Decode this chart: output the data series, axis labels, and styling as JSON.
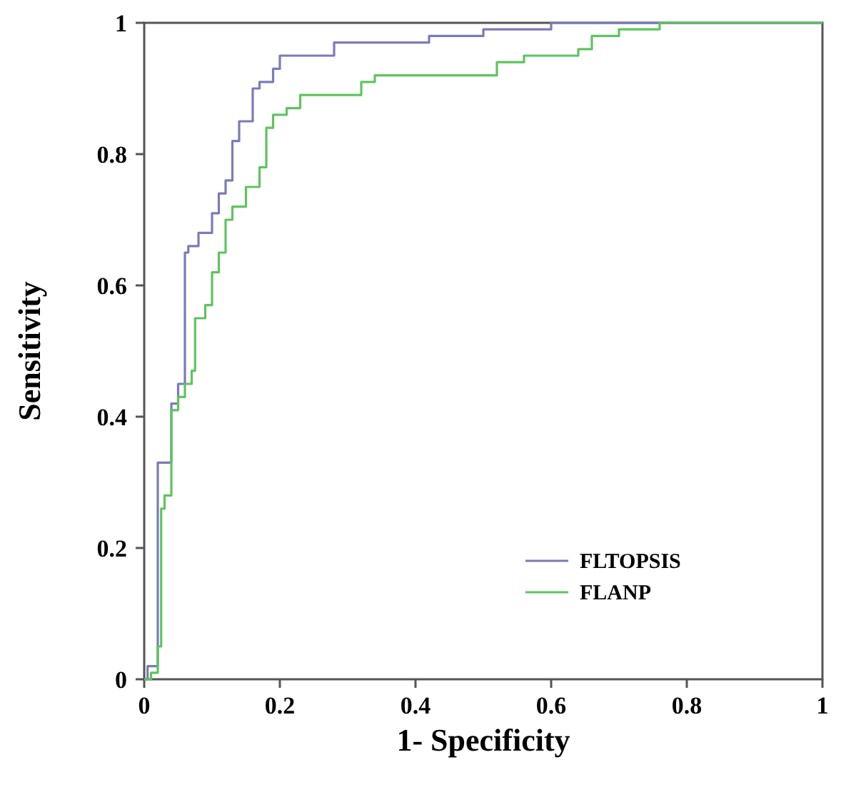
{
  "chart_data": {
    "type": "step",
    "xlabel": "1- Specificity",
    "ylabel": "Sensitivity",
    "xlim": [
      0,
      1
    ],
    "ylim": [
      0,
      1
    ],
    "xticks": [
      0,
      0.2,
      0.4,
      0.6,
      0.8,
      1
    ],
    "yticks": [
      0,
      0.2,
      0.4,
      0.6,
      0.8,
      1
    ],
    "grid": false,
    "legend": "bottom right",
    "marker": "none",
    "line_style": "solid",
    "series": [
      {
        "name": "FLTOPSIS",
        "color": "#7b7bb8",
        "x": [
          0,
          0.005,
          0.02,
          0.02,
          0.04,
          0.05,
          0.06,
          0.06,
          0.065,
          0.08,
          0.1,
          0.11,
          0.12,
          0.13,
          0.14,
          0.16,
          0.17,
          0.19,
          0.2,
          0.26,
          0.28,
          0.4,
          0.42,
          0.49,
          0.5,
          0.58,
          0.6,
          1
        ],
        "values": [
          0,
          0.02,
          0.05,
          0.33,
          0.42,
          0.45,
          0.55,
          0.65,
          0.66,
          0.68,
          0.71,
          0.74,
          0.76,
          0.82,
          0.85,
          0.9,
          0.91,
          0.93,
          0.95,
          0.95,
          0.97,
          0.97,
          0.98,
          0.98,
          0.99,
          0.99,
          1,
          1
        ]
      },
      {
        "name": "FLANP",
        "color": "#5fc45f",
        "x": [
          0,
          0.01,
          0.02,
          0.025,
          0.03,
          0.04,
          0.05,
          0.06,
          0.07,
          0.075,
          0.09,
          0.1,
          0.11,
          0.12,
          0.13,
          0.15,
          0.17,
          0.18,
          0.19,
          0.21,
          0.23,
          0.3,
          0.32,
          0.34,
          0.5,
          0.52,
          0.56,
          0.64,
          0.66,
          0.7,
          0.76,
          1
        ],
        "values": [
          0,
          0.01,
          0.05,
          0.26,
          0.28,
          0.41,
          0.43,
          0.45,
          0.47,
          0.55,
          0.57,
          0.62,
          0.65,
          0.7,
          0.72,
          0.75,
          0.78,
          0.84,
          0.86,
          0.87,
          0.89,
          0.89,
          0.91,
          0.92,
          0.92,
          0.94,
          0.95,
          0.96,
          0.98,
          0.99,
          1,
          1
        ]
      }
    ]
  }
}
